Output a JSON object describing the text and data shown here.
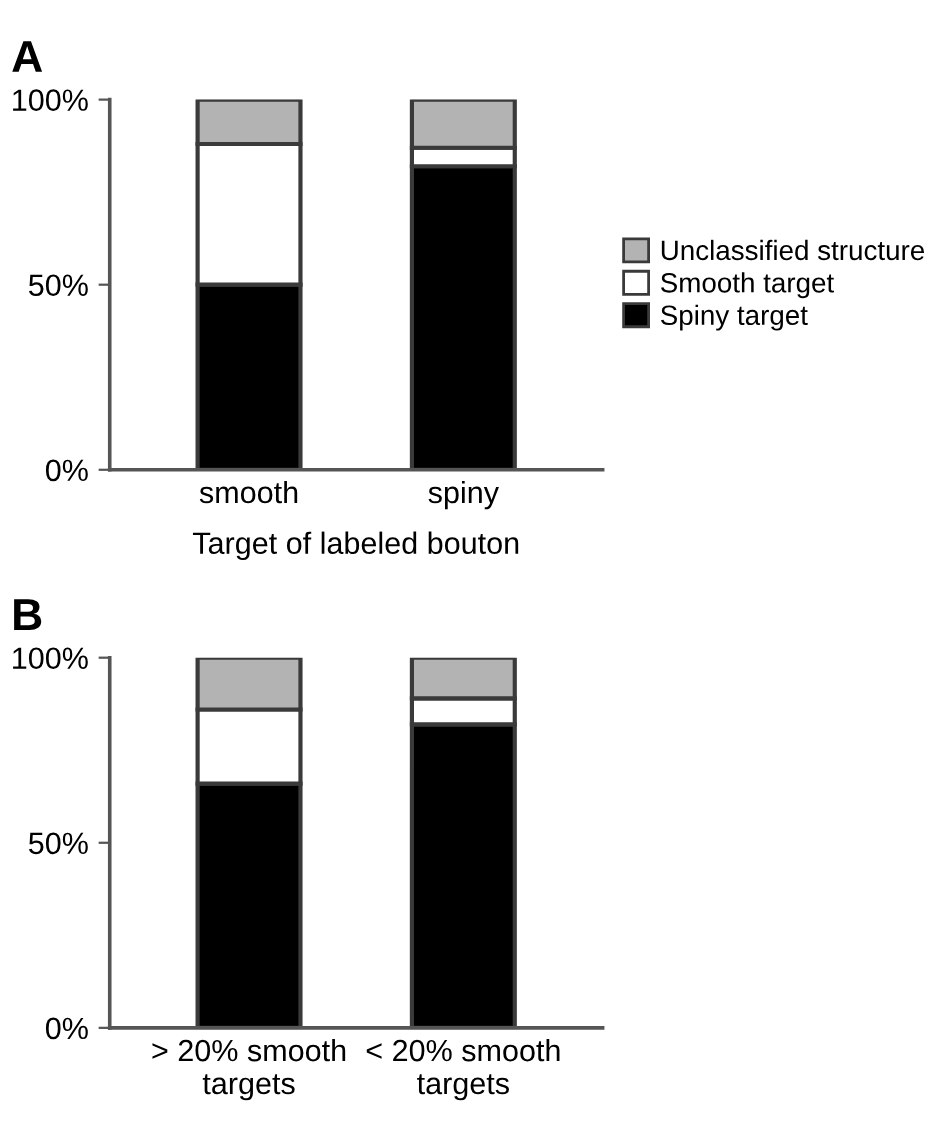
{
  "chart_data": [
    {
      "type": "bar",
      "title": "A",
      "xlabel": "Target of labeled bouton",
      "categories": [
        "smooth",
        "spiny"
      ],
      "stacked": true,
      "legend": "right",
      "series": [
        {
          "name": "Spiny target",
          "color": "#000000",
          "values": [
            50,
            82
          ]
        },
        {
          "name": "Smooth target",
          "color": "#ffffff",
          "values": [
            38,
            5
          ]
        },
        {
          "name": "Unclassified structure",
          "color": "#b3b3b3",
          "values": [
            12,
            13
          ]
        }
      ],
      "ylim": [
        0,
        100
      ],
      "yticks": [
        {
          "value": 0,
          "label": "0%"
        },
        {
          "value": 50,
          "label": "50%"
        },
        {
          "value": 100,
          "label": "100%"
        }
      ],
      "grid": false
    },
    {
      "type": "bar",
      "title": "B",
      "categories": [
        "> 20% smooth\ntargets",
        "< 20% smooth\ntargets"
      ],
      "stacked": true,
      "legend": false,
      "series": [
        {
          "color": "#000000",
          "values": [
            66,
            82
          ]
        },
        {
          "color": "#ffffff",
          "values": [
            20,
            7
          ]
        },
        {
          "color": "#b3b3b3",
          "values": [
            14,
            11
          ]
        }
      ],
      "ylim": [
        0,
        100
      ],
      "yticks": [
        {
          "value": 0,
          "label": "0%"
        },
        {
          "value": 50,
          "label": "50%"
        },
        {
          "value": 100,
          "label": "100%"
        }
      ],
      "grid": false
    }
  ]
}
